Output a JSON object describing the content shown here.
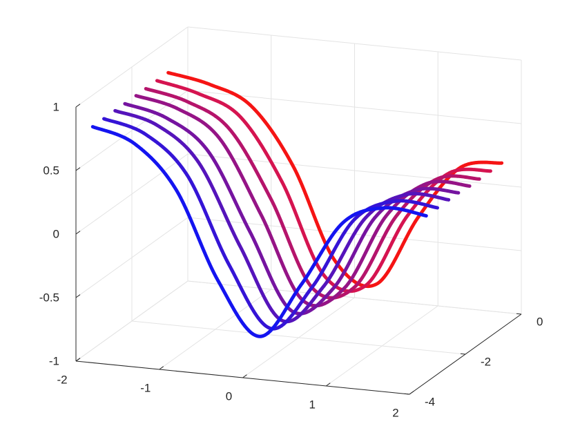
{
  "chart_data": {
    "type": "line3d",
    "x": [
      -2,
      -1.5,
      -1,
      -0.5,
      0,
      0.5,
      1,
      1.5,
      2
    ],
    "series": [
      {
        "y": -3.4,
        "color": "#1414f0",
        "z": [
          0.75,
          0.65,
          0.32,
          -0.36,
          -0.77,
          -0.33,
          0.19,
          0.34,
          0.31
        ]
      },
      {
        "y": -3.0,
        "color": "#3514d6",
        "z": [
          0.75,
          0.66,
          0.37,
          -0.3,
          -0.77,
          -0.41,
          0.15,
          0.33,
          0.31
        ]
      },
      {
        "y": -2.6,
        "color": "#5514bb",
        "z": [
          0.75,
          0.67,
          0.41,
          -0.22,
          -0.77,
          -0.47,
          0.1,
          0.32,
          0.31
        ]
      },
      {
        "y": -2.25,
        "color": "#7514a0",
        "z": [
          0.75,
          0.67,
          0.44,
          -0.16,
          -0.75,
          -0.54,
          0.05,
          0.3,
          0.31
        ]
      },
      {
        "y": -1.85,
        "color": "#951486",
        "z": [
          0.75,
          0.68,
          0.48,
          -0.09,
          -0.73,
          -0.6,
          0,
          0.29,
          0.3
        ]
      },
      {
        "y": -1.5,
        "color": "#b5146b",
        "z": [
          0.75,
          0.68,
          0.5,
          -0.02,
          -0.69,
          -0.65,
          -0.06,
          0.27,
          0.3
        ]
      },
      {
        "y": -1.1,
        "color": "#d51450",
        "z": [
          0.75,
          0.68,
          0.53,
          0.05,
          -0.65,
          -0.7,
          -0.12,
          0.25,
          0.3
        ]
      },
      {
        "y": -0.7,
        "color": "#f51414",
        "z": [
          0.75,
          0.69,
          0.55,
          0.11,
          -0.6,
          -0.75,
          -0.19,
          0.23,
          0.3
        ]
      }
    ],
    "xlim": [
      -2,
      2
    ],
    "ylim": [
      -4,
      0
    ],
    "zlim": [
      -1,
      1
    ],
    "xticks": [
      -2,
      -1,
      0,
      1,
      2
    ],
    "yticks": [
      -4,
      -2,
      0
    ],
    "zticks": [
      -1,
      -0.5,
      0,
      0.5,
      1
    ],
    "grid": true
  }
}
